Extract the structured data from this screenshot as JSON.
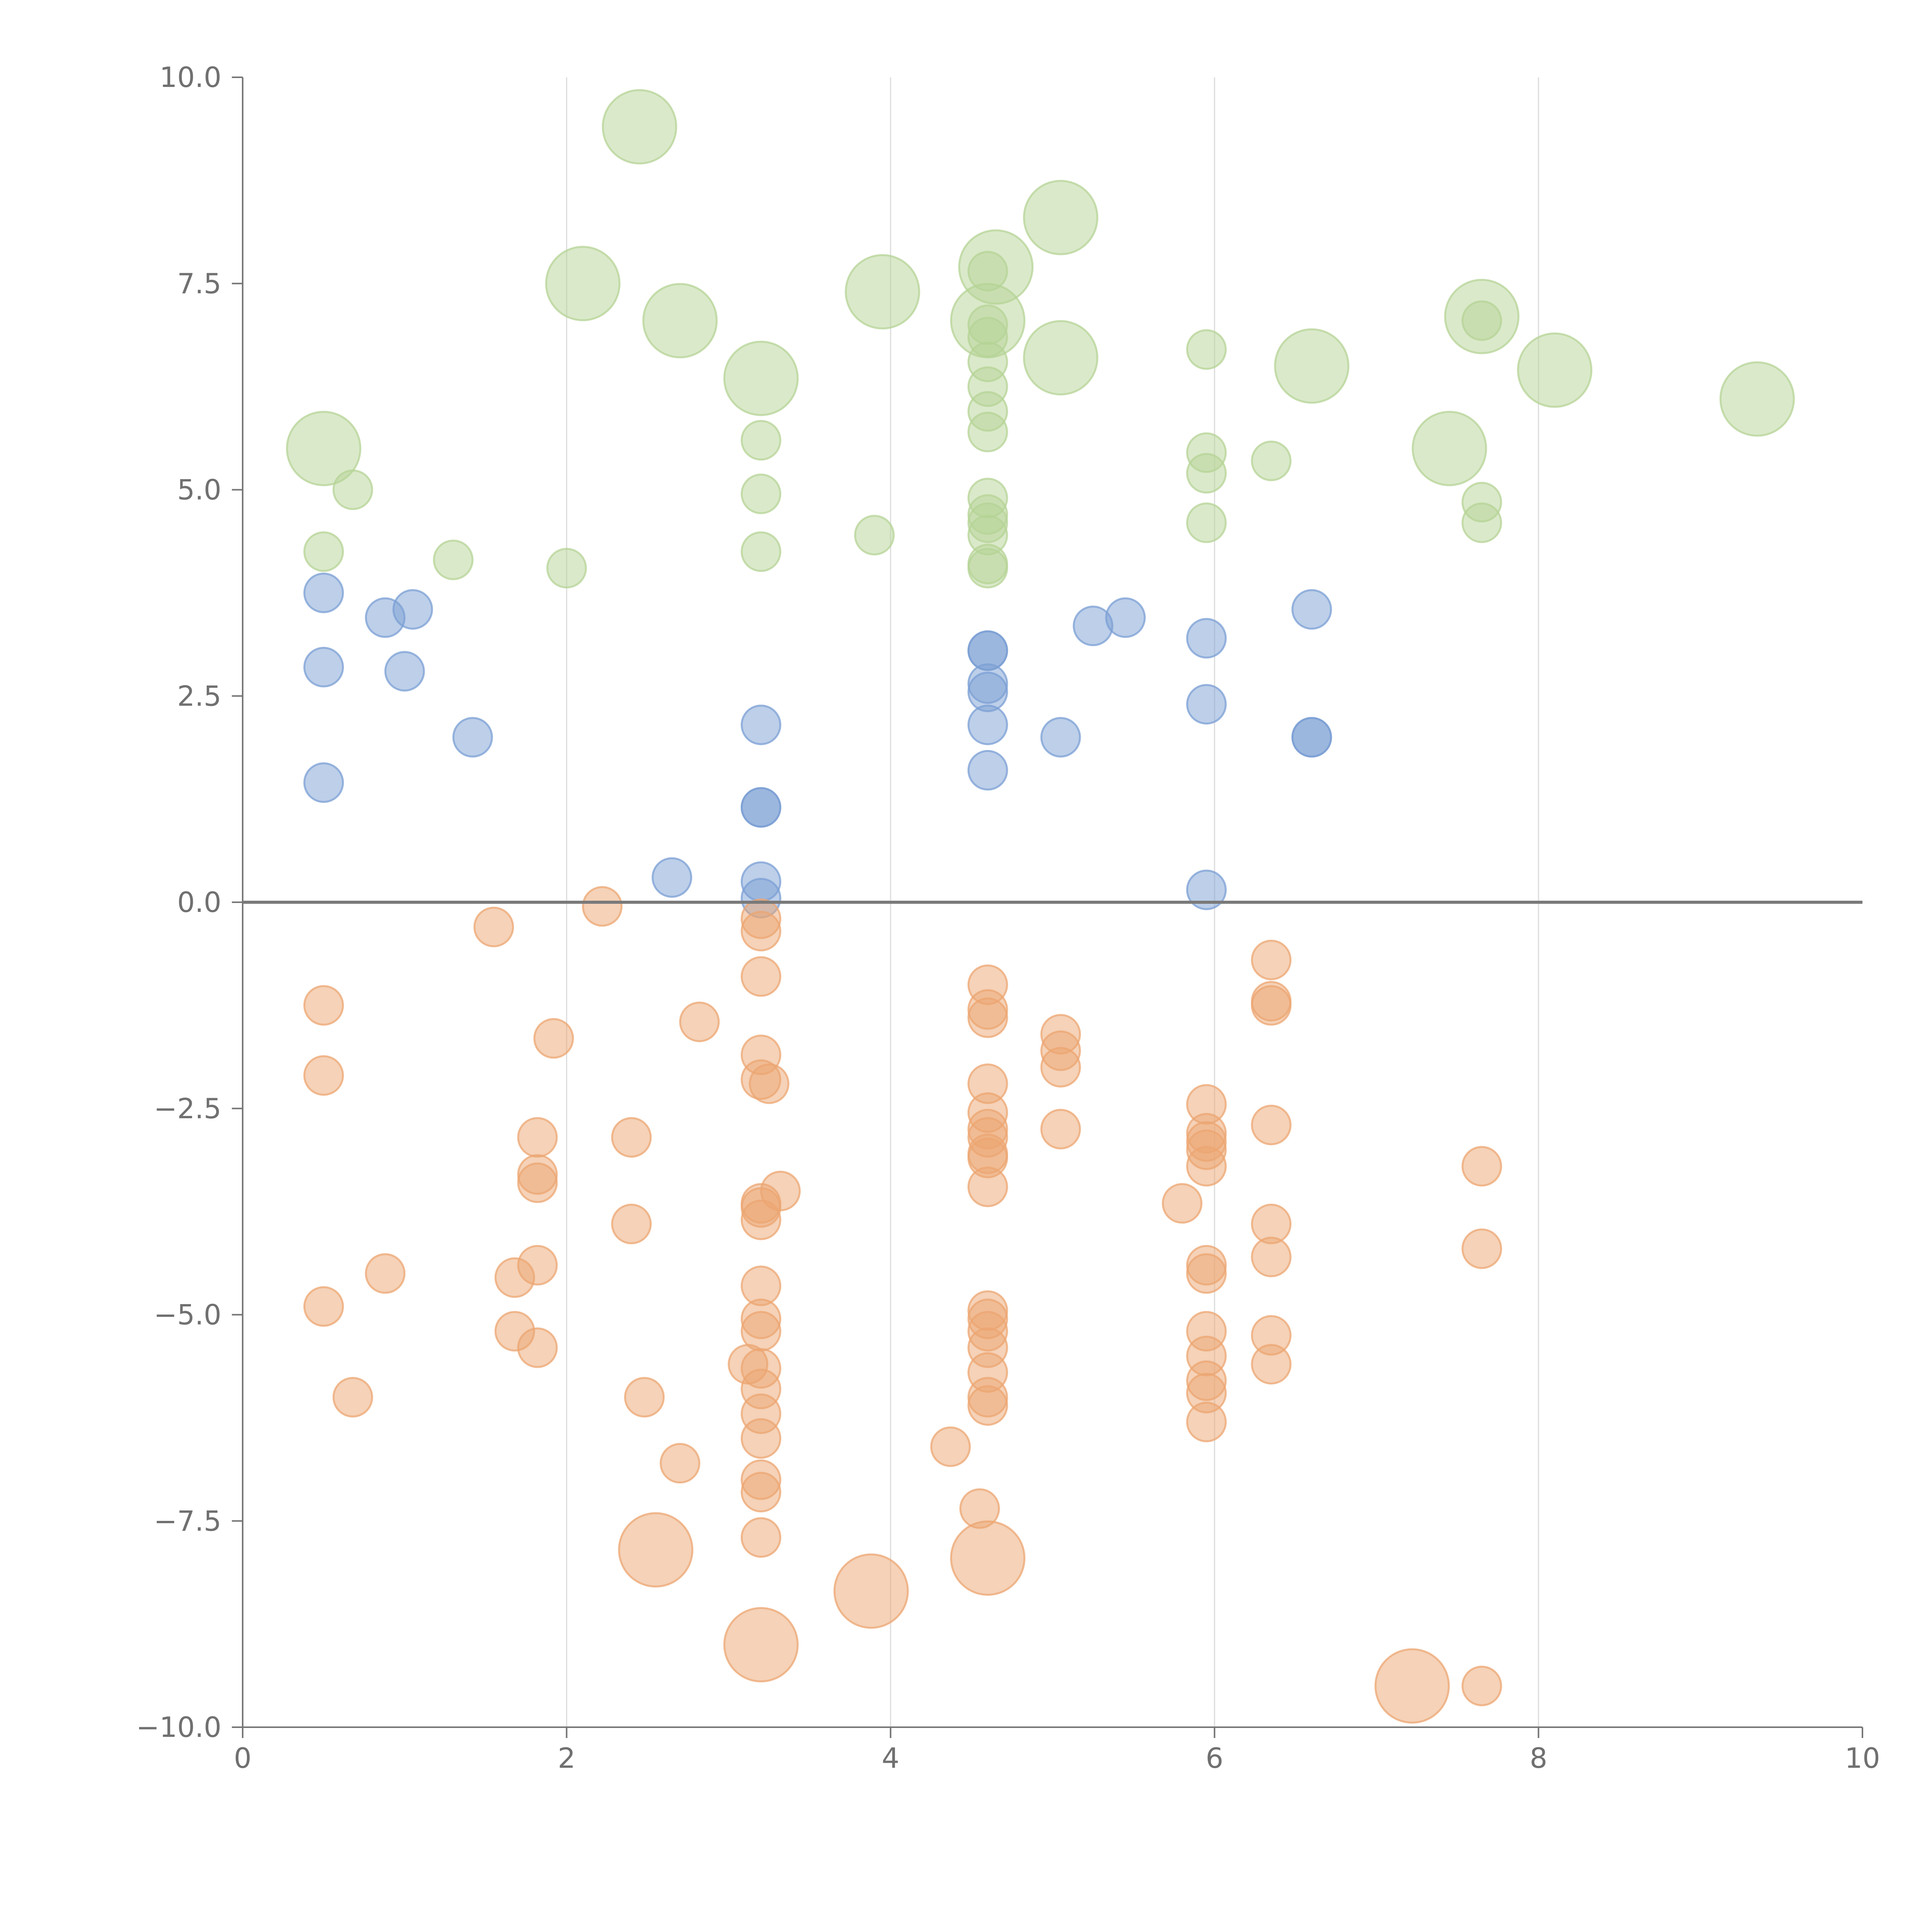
{
  "colors": {
    "positive_small": "#7b9fd4",
    "positive_large": "#b5d395",
    "negative": "#eca672",
    "axis": "#777777",
    "grid": "#dcdcdc",
    "zero_line": "#7a7a7a",
    "tick_text": "#707070"
  },
  "chart_data": {
    "type": "scatter",
    "title": "",
    "xlabel": "",
    "ylabel": "",
    "xlim": [
      0,
      10
    ],
    "ylim": [
      -10,
      10
    ],
    "x_ticks": [
      0,
      2,
      4,
      6,
      8,
      10
    ],
    "x_tick_labels": [
      "0",
      "2",
      "4",
      "6",
      "8",
      "10"
    ],
    "y_ticks": [
      10,
      7.5,
      5,
      2.5,
      0,
      -2.5,
      -5,
      -7.5,
      -10
    ],
    "y_tick_labels": [
      "10.0",
      "7.5",
      "5.0",
      "2.5",
      "0.0",
      "−2.5",
      "−5.0",
      "−7.5",
      "−10.0"
    ],
    "grid": "vertical lines at x ticks",
    "reference_line": 0,
    "legend": "none",
    "marker_opacity": 0.5,
    "series": [
      {
        "color_key": "positive_large",
        "points": [
          [
            2.45,
            9.4,
            "L"
          ],
          [
            2.1,
            7.5,
            "L"
          ],
          [
            2.7,
            7.05,
            "L"
          ],
          [
            3.2,
            6.35,
            "L"
          ],
          [
            3.95,
            7.4,
            "L"
          ],
          [
            4.65,
            7.7,
            "L"
          ],
          [
            4.6,
            7.05,
            "L"
          ],
          [
            5.05,
            8.3,
            "L"
          ],
          [
            5.05,
            6.6,
            "L"
          ],
          [
            6.6,
            6.5,
            "L"
          ],
          [
            7.65,
            7.1,
            "L"
          ],
          [
            8.1,
            6.45,
            "L"
          ],
          [
            9.35,
            6.1,
            "L"
          ],
          [
            7.45,
            5.5,
            "L"
          ],
          [
            0.5,
            5.5,
            "L"
          ],
          [
            0.68,
            5.0,
            "S"
          ],
          [
            0.5,
            4.25,
            "S"
          ],
          [
            1.3,
            4.15,
            "S"
          ],
          [
            2.0,
            4.05,
            "S"
          ],
          [
            3.2,
            5.6,
            "S"
          ],
          [
            3.2,
            4.95,
            "S"
          ],
          [
            3.2,
            4.25,
            "S"
          ],
          [
            3.9,
            4.45,
            "S"
          ],
          [
            4.6,
            7.65,
            "S"
          ],
          [
            4.6,
            7.0,
            "S"
          ],
          [
            4.6,
            6.85,
            "S"
          ],
          [
            4.6,
            6.55,
            "S"
          ],
          [
            4.6,
            6.25,
            "S"
          ],
          [
            4.6,
            5.95,
            "S"
          ],
          [
            4.6,
            5.7,
            "S"
          ],
          [
            4.6,
            4.9,
            "S"
          ],
          [
            4.6,
            4.7,
            "S"
          ],
          [
            4.6,
            4.6,
            "S"
          ],
          [
            4.6,
            4.45,
            "S"
          ],
          [
            4.6,
            4.1,
            "S"
          ],
          [
            4.6,
            4.05,
            "S"
          ],
          [
            5.95,
            6.7,
            "S"
          ],
          [
            5.95,
            5.45,
            "S"
          ],
          [
            5.95,
            5.2,
            "S"
          ],
          [
            5.95,
            4.6,
            "S"
          ],
          [
            6.35,
            5.35,
            "S"
          ],
          [
            7.65,
            7.05,
            "S"
          ],
          [
            7.65,
            4.85,
            "S"
          ],
          [
            7.65,
            4.6,
            "S"
          ]
        ]
      },
      {
        "color_key": "positive_small",
        "points": [
          [
            0.5,
            3.75,
            "S"
          ],
          [
            0.5,
            2.85,
            "S"
          ],
          [
            0.5,
            1.45,
            "S"
          ],
          [
            0.88,
            3.45,
            "S"
          ],
          [
            1.05,
            3.55,
            "S"
          ],
          [
            1.0,
            2.8,
            "S"
          ],
          [
            1.42,
            2.0,
            "S"
          ],
          [
            2.65,
            0.3,
            "S"
          ],
          [
            3.2,
            2.15,
            "S"
          ],
          [
            3.2,
            1.15,
            "S"
          ],
          [
            3.2,
            1.15,
            "S"
          ],
          [
            3.2,
            0.25,
            "S"
          ],
          [
            3.2,
            0.05,
            "S"
          ],
          [
            4.6,
            3.05,
            "S"
          ],
          [
            4.6,
            3.05,
            "S"
          ],
          [
            4.6,
            2.65,
            "S"
          ],
          [
            4.6,
            2.55,
            "S"
          ],
          [
            4.6,
            2.15,
            "S"
          ],
          [
            4.6,
            1.6,
            "S"
          ],
          [
            5.05,
            2.0,
            "S"
          ],
          [
            5.25,
            3.35,
            "S"
          ],
          [
            5.45,
            3.45,
            "S"
          ],
          [
            5.95,
            3.2,
            "S"
          ],
          [
            5.95,
            2.4,
            "S"
          ],
          [
            5.95,
            0.15,
            "S"
          ],
          [
            6.6,
            3.55,
            "S"
          ],
          [
            6.6,
            2.0,
            "S"
          ],
          [
            6.6,
            2.0,
            "S"
          ]
        ]
      },
      {
        "color_key": "negative",
        "points": [
          [
            0.5,
            -1.25,
            "S"
          ],
          [
            0.5,
            -2.1,
            "S"
          ],
          [
            0.5,
            -4.9,
            "S"
          ],
          [
            0.68,
            -6.0,
            "S"
          ],
          [
            0.88,
            -4.5,
            "S"
          ],
          [
            1.55,
            -0.3,
            "S"
          ],
          [
            1.68,
            -4.55,
            "S"
          ],
          [
            1.68,
            -5.2,
            "S"
          ],
          [
            1.82,
            -2.85,
            "S"
          ],
          [
            1.82,
            -3.3,
            "S"
          ],
          [
            1.82,
            -3.4,
            "S"
          ],
          [
            1.82,
            -4.4,
            "S"
          ],
          [
            1.82,
            -5.4,
            "S"
          ],
          [
            1.92,
            -1.65,
            "S"
          ],
          [
            2.22,
            -0.05,
            "S"
          ],
          [
            2.4,
            -2.85,
            "S"
          ],
          [
            2.4,
            -3.9,
            "S"
          ],
          [
            2.48,
            -6.0,
            "S"
          ],
          [
            2.7,
            -6.8,
            "S"
          ],
          [
            2.82,
            -1.45,
            "S"
          ],
          [
            3.2,
            -0.2,
            "S"
          ],
          [
            3.2,
            -0.35,
            "S"
          ],
          [
            3.2,
            -0.9,
            "S"
          ],
          [
            3.2,
            -1.85,
            "S"
          ],
          [
            3.2,
            -2.15,
            "S"
          ],
          [
            3.25,
            -2.2,
            "S"
          ],
          [
            3.32,
            -3.5,
            "S"
          ],
          [
            3.2,
            -3.65,
            "S"
          ],
          [
            3.2,
            -3.7,
            "S"
          ],
          [
            3.2,
            -3.85,
            "S"
          ],
          [
            3.2,
            -4.65,
            "S"
          ],
          [
            3.2,
            -5.05,
            "S"
          ],
          [
            3.2,
            -5.2,
            "S"
          ],
          [
            3.12,
            -5.6,
            "S"
          ],
          [
            3.2,
            -5.65,
            "S"
          ],
          [
            3.2,
            -5.9,
            "S"
          ],
          [
            3.2,
            -6.2,
            "S"
          ],
          [
            3.2,
            -6.5,
            "S"
          ],
          [
            3.2,
            -7.0,
            "S"
          ],
          [
            3.2,
            -7.15,
            "S"
          ],
          [
            3.2,
            -7.7,
            "S"
          ],
          [
            4.37,
            -6.6,
            "S"
          ],
          [
            4.55,
            -7.35,
            "S"
          ],
          [
            4.6,
            -1.0,
            "S"
          ],
          [
            4.6,
            -1.3,
            "S"
          ],
          [
            4.6,
            -1.4,
            "S"
          ],
          [
            4.6,
            -2.2,
            "S"
          ],
          [
            4.6,
            -2.55,
            "S"
          ],
          [
            4.6,
            -2.75,
            "S"
          ],
          [
            4.6,
            -2.85,
            "S"
          ],
          [
            4.6,
            -3.05,
            "S"
          ],
          [
            4.6,
            -3.1,
            "S"
          ],
          [
            4.6,
            -3.45,
            "S"
          ],
          [
            4.6,
            -4.95,
            "S"
          ],
          [
            4.6,
            -5.05,
            "S"
          ],
          [
            4.6,
            -5.2,
            "S"
          ],
          [
            4.6,
            -5.4,
            "S"
          ],
          [
            4.6,
            -5.7,
            "S"
          ],
          [
            4.6,
            -6.0,
            "S"
          ],
          [
            4.6,
            -6.1,
            "S"
          ],
          [
            5.05,
            -1.6,
            "S"
          ],
          [
            5.05,
            -1.8,
            "S"
          ],
          [
            5.05,
            -2.0,
            "S"
          ],
          [
            5.05,
            -2.75,
            "S"
          ],
          [
            5.8,
            -3.65,
            "S"
          ],
          [
            5.95,
            -2.45,
            "S"
          ],
          [
            5.95,
            -2.8,
            "S"
          ],
          [
            5.95,
            -2.9,
            "S"
          ],
          [
            5.95,
            -3.0,
            "S"
          ],
          [
            5.95,
            -3.2,
            "S"
          ],
          [
            5.95,
            -4.4,
            "S"
          ],
          [
            5.95,
            -4.5,
            "S"
          ],
          [
            5.95,
            -5.2,
            "S"
          ],
          [
            5.95,
            -5.5,
            "S"
          ],
          [
            5.95,
            -5.8,
            "S"
          ],
          [
            5.95,
            -5.95,
            "S"
          ],
          [
            5.95,
            -6.3,
            "S"
          ],
          [
            6.35,
            -0.7,
            "S"
          ],
          [
            6.35,
            -1.2,
            "S"
          ],
          [
            6.35,
            -1.25,
            "S"
          ],
          [
            6.35,
            -2.7,
            "S"
          ],
          [
            6.35,
            -3.9,
            "S"
          ],
          [
            6.35,
            -4.3,
            "S"
          ],
          [
            6.35,
            -5.25,
            "S"
          ],
          [
            6.35,
            -5.6,
            "S"
          ],
          [
            7.65,
            -3.2,
            "S"
          ],
          [
            7.65,
            -4.2,
            "S"
          ],
          [
            7.65,
            -9.5,
            "S"
          ],
          [
            2.55,
            -7.85,
            "L"
          ],
          [
            3.88,
            -8.35,
            "L"
          ],
          [
            4.6,
            -7.95,
            "L"
          ],
          [
            3.2,
            -9.0,
            "L"
          ],
          [
            7.22,
            -9.5,
            "L"
          ]
        ]
      }
    ]
  }
}
